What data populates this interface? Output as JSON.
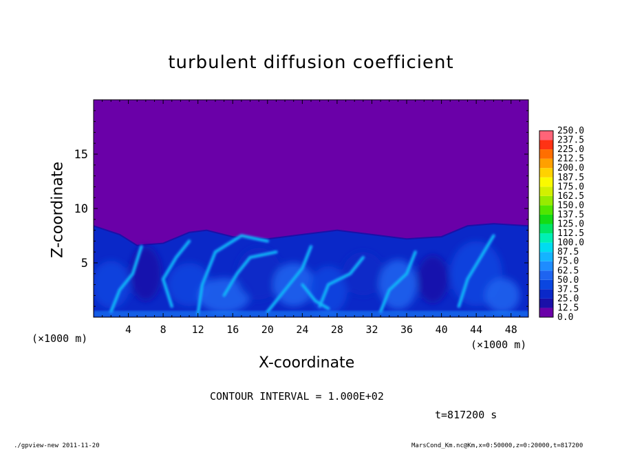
{
  "chart_data": {
    "type": "heatmap",
    "title": "turbulent diffusion coefficient",
    "xlabel": "X-coordinate",
    "ylabel": "Z-coordinate",
    "x_unit": "(×1000 m)",
    "y_unit": "(×1000 m)",
    "xlim": [
      0,
      50
    ],
    "ylim": [
      0,
      20
    ],
    "x_ticks": [
      4,
      8,
      12,
      16,
      20,
      24,
      28,
      32,
      36,
      40,
      44,
      48
    ],
    "y_ticks": [
      5,
      10,
      15
    ],
    "colorbar": {
      "levels": [
        0.0,
        12.5,
        25.0,
        37.5,
        50.0,
        62.5,
        75.0,
        87.5,
        100.0,
        112.5,
        125.0,
        137.5,
        150.0,
        162.5,
        175.0,
        187.5,
        200.0,
        212.5,
        225.0,
        237.5,
        250.0
      ],
      "labels": [
        "0.0",
        "12.5",
        "25.0",
        "37.5",
        "50.0",
        "62.5",
        "75.0",
        "87.5",
        "100.0",
        "112.5",
        "125.0",
        "137.5",
        "150.0",
        "162.5",
        "175.0",
        "187.5",
        "200.0",
        "212.5",
        "225.0",
        "237.5",
        "250.0"
      ],
      "colors": [
        "#6a00a8",
        "#1a10a8",
        "#0a28c8",
        "#0a46e0",
        "#1e64f0",
        "#1e8cff",
        "#14b4ff",
        "#00dcf0",
        "#00f0b4",
        "#00e664",
        "#14dc14",
        "#50e600",
        "#96eb00",
        "#d2f000",
        "#fafa00",
        "#ffd200",
        "#ffa000",
        "#ff6e00",
        "#ff3214",
        "#ff6478"
      ]
    },
    "background_color": "#6a00a8",
    "turbulent_layer_top_km": [
      8.4,
      7.6,
      6.6,
      6.8,
      7.8,
      8.0,
      7.4,
      7.2,
      7.6,
      8.0,
      7.6,
      7.2,
      7.4,
      8.4,
      8.6,
      8.4
    ],
    "turbulent_layer_top_x_km": [
      0,
      3,
      5,
      8,
      11,
      13,
      16,
      20,
      24,
      28,
      32,
      36,
      40,
      43,
      46,
      50
    ]
  },
  "annotations": {
    "contour_interval": "CONTOUR INTERVAL = 1.000E+02",
    "time": "t=817200 s",
    "footer_left": "./gpview-new  2011-11-20",
    "footer_right": "MarsCond_Km.nc@Km,x=0:50000,z=0:20000,t=817200"
  }
}
